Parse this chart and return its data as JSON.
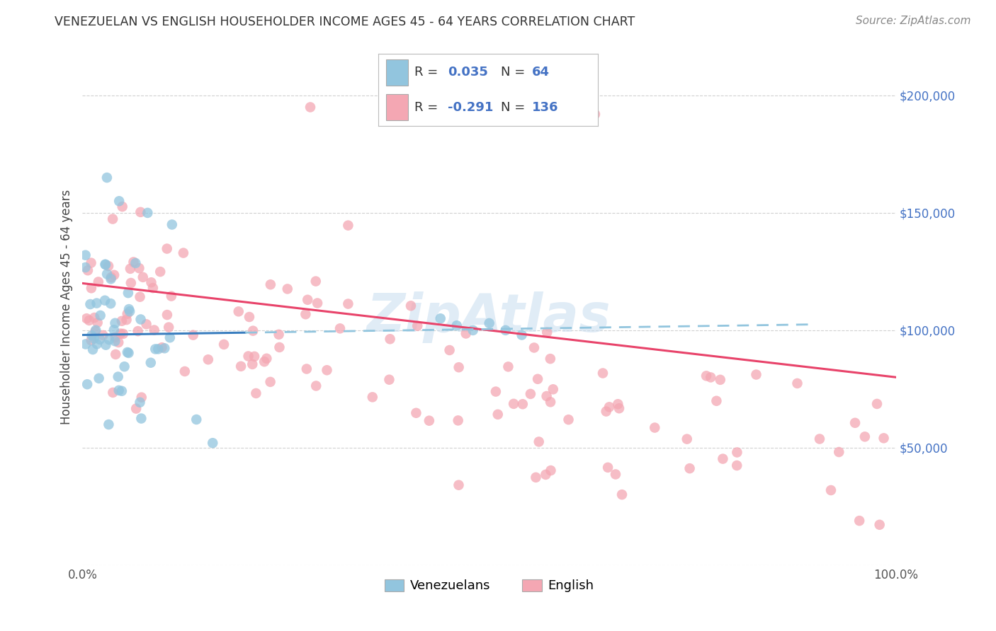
{
  "title": "VENEZUELAN VS ENGLISH HOUSEHOLDER INCOME AGES 45 - 64 YEARS CORRELATION CHART",
  "source": "Source: ZipAtlas.com",
  "ylabel": "Householder Income Ages 45 - 64 years",
  "watermark": "ZipAtlas",
  "xlim": [
    0.0,
    100.0
  ],
  "ylim": [
    0,
    220000
  ],
  "yticks": [
    0,
    50000,
    100000,
    150000,
    200000
  ],
  "ytick_labels": [
    "",
    "$50,000",
    "$100,000",
    "$150,000",
    "$200,000"
  ],
  "blue_color": "#92c5de",
  "pink_color": "#f4a7b3",
  "blue_line_color": "#3a7ebf",
  "pink_line_color": "#e8436a",
  "dash_line_color": "#92c5de",
  "title_color": "#333333",
  "source_color": "#888888",
  "right_label_color": "#4472c4",
  "background_color": "#ffffff",
  "grid_color": "#cccccc"
}
